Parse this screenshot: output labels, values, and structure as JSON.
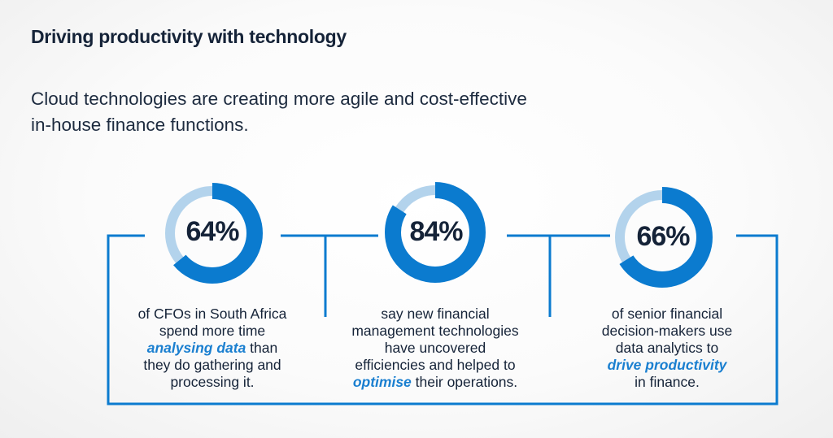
{
  "header": {
    "title": "Driving productivity with technology",
    "subtitle_line1": "Cloud technologies are creating more agile and cost-effective",
    "subtitle_line2": "in-house finance functions."
  },
  "colors": {
    "ring_dark": "#0b7bcf",
    "ring_light": "#b3d3ec",
    "frame": "#0b7bcf",
    "highlight": "#1a7fd0",
    "text": "#152338"
  },
  "stats": [
    {
      "value": "64%",
      "fraction": 0.64,
      "line1": "of CFOs in South Africa",
      "line2": "spend more time",
      "highlight": "analysing data",
      "line3_after": " than",
      "line4": "they do gathering and",
      "line5": "processing it."
    },
    {
      "value": "84%",
      "fraction": 0.84,
      "line1": "say new financial",
      "line2": "management technologies",
      "line3": "have uncovered",
      "line4": "efficiencies and helped to",
      "highlight": "optimise",
      "line5_after": " their operations."
    },
    {
      "value": "66%",
      "fraction": 0.66,
      "line1": "of senior financial",
      "line2": "decision-makers use",
      "line3": "data analytics to",
      "highlight": "drive productivity",
      "line5": "in finance."
    }
  ]
}
